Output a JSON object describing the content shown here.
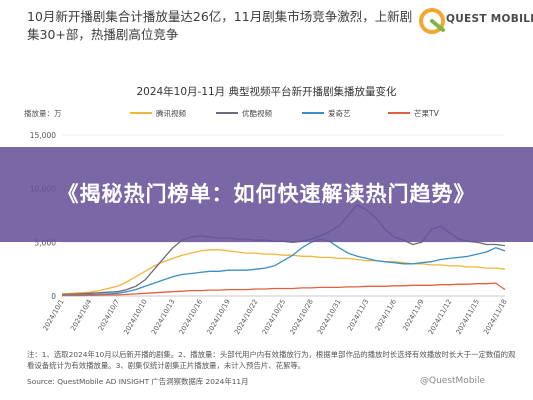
{
  "headline": "10月新开播剧集合计播放量达26亿，11月剧集市场竞争激烈，上新剧集30+部，热播剧高位竞争",
  "logo": {
    "name": "QUEST MOBILE"
  },
  "banner": {
    "text": "《揭秘热门榜单：如何快速解读热门趋势》"
  },
  "footnote": "注：1、选取2024年10月以后新开播的剧集。2、播放量：头部代用户内有效播放行为，根据单部作品的播放时长选择有效播放时长大于一定数值的观看设备统计为有效播放量。3、剧集仅统计剧集正片播放量，未计入预告片、花絮等。",
  "source": "Source: QuestMobile AD INSIGHT 广告洞察数据库 2024年11月",
  "watermark": "@QuestMobile",
  "colors": {
    "tencent": "#f2b53a",
    "youku": "#6b6b7b",
    "iqiyi": "#3a8fc8",
    "mango": "#e2603d",
    "banner": "#685298"
  },
  "chart_data": {
    "type": "line",
    "title": "2024年10月-11月 典型视频平台新开播剧集播放量变化",
    "ylabel": "播放量：万",
    "ylim": [
      0,
      15000
    ],
    "yticks": [
      0,
      5000,
      10000,
      15000
    ],
    "ytick_labels": [
      "0",
      "5,000",
      "10,000",
      "15,000"
    ],
    "x": [
      "2024/10/1",
      "2024/10/2",
      "2024/10/3",
      "2024/10/4",
      "2024/10/5",
      "2024/10/6",
      "2024/10/7",
      "2024/10/8",
      "2024/10/9",
      "2024/10/10",
      "2024/10/11",
      "2024/10/12",
      "2024/10/13",
      "2024/10/14",
      "2024/10/15",
      "2024/10/16",
      "2024/10/17",
      "2024/10/18",
      "2024/10/19",
      "2024/10/20",
      "2024/10/21",
      "2024/10/22",
      "2024/10/23",
      "2024/10/24",
      "2024/10/25",
      "2024/10/26",
      "2024/10/27",
      "2024/10/28",
      "2024/10/29",
      "2024/10/30",
      "2024/10/31",
      "2024/11/1",
      "2024/11/2",
      "2024/11/3",
      "2024/11/4",
      "2024/11/5",
      "2024/11/6",
      "2024/11/7",
      "2024/11/8",
      "2024/11/9",
      "2024/11/10",
      "2024/11/11",
      "2024/11/12",
      "2024/11/13",
      "2024/11/14",
      "2024/11/15",
      "2024/11/16",
      "2024/11/17",
      "2024/11/18"
    ],
    "xtick_labels": [
      "2024/10/1",
      "2024/10/4",
      "2024/10/7",
      "2024/10/10",
      "2024/10/13",
      "2024/10/16",
      "2024/10/19",
      "2024/10/22",
      "2024/10/25",
      "2024/10/28",
      "2024/10/31",
      "2024/11/3",
      "2024/11/6",
      "2024/11/9",
      "2024/11/12",
      "2024/11/15",
      "2024/11/18"
    ],
    "legend_position": "top",
    "series": [
      {
        "name": "腾讯视频",
        "values": [
          200,
          250,
          300,
          350,
          500,
          700,
          900,
          1300,
          1800,
          2300,
          2800,
          3200,
          3500,
          3800,
          4000,
          4200,
          4300,
          4300,
          4200,
          4100,
          4000,
          4000,
          3900,
          3900,
          3800,
          3800,
          3700,
          3700,
          3600,
          3600,
          3500,
          3500,
          3400,
          3300,
          3300,
          3200,
          3200,
          3100,
          3000,
          3000,
          2900,
          2900,
          2800,
          2800,
          2700,
          2700,
          2600,
          2600,
          2500
        ]
      },
      {
        "name": "优酷视频",
        "values": [
          150,
          180,
          200,
          250,
          300,
          350,
          400,
          600,
          900,
          1500,
          2500,
          3500,
          4500,
          5200,
          5500,
          5600,
          5500,
          5400,
          5400,
          5300,
          5300,
          5200,
          5200,
          5100,
          5100,
          5000,
          5100,
          5300,
          5600,
          6000,
          6500,
          7500,
          8500,
          8000,
          7300,
          6200,
          5500,
          5200,
          4800,
          5000,
          6200,
          6500,
          5900,
          5300,
          5100,
          5000,
          4800,
          4800,
          4700
        ]
      },
      {
        "name": "爱奇艺",
        "values": [
          100,
          100,
          100,
          120,
          150,
          200,
          250,
          400,
          600,
          900,
          1200,
          1500,
          1800,
          2000,
          2100,
          2200,
          2300,
          2300,
          2400,
          2400,
          2400,
          2500,
          2600,
          2800,
          3300,
          3800,
          4500,
          5000,
          5300,
          5100,
          4500,
          4000,
          3700,
          3500,
          3300,
          3200,
          3100,
          3000,
          3000,
          3100,
          3200,
          3400,
          3500,
          3600,
          3700,
          3900,
          4100,
          4500,
          4200
        ]
      },
      {
        "name": "芒果TV",
        "values": [
          50,
          50,
          50,
          60,
          80,
          100,
          100,
          150,
          200,
          250,
          300,
          350,
          400,
          450,
          500,
          500,
          550,
          550,
          600,
          600,
          600,
          650,
          650,
          700,
          700,
          700,
          750,
          750,
          800,
          800,
          800,
          850,
          850,
          900,
          900,
          900,
          950,
          950,
          1000,
          1000,
          1000,
          1050,
          1050,
          1100,
          1100,
          1150,
          1150,
          1200,
          600
        ]
      }
    ]
  }
}
